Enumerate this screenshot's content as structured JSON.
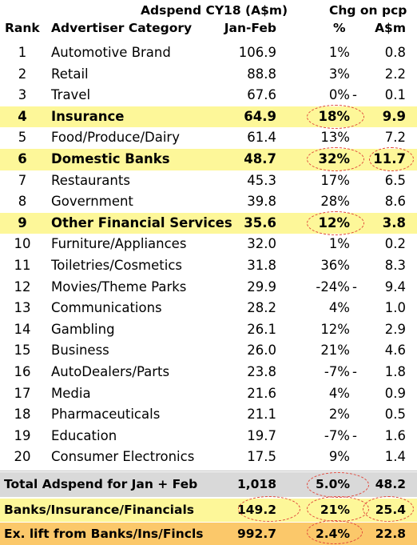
{
  "chart_data": {
    "type": "table",
    "header": {
      "group_adspend": "Adspend CY18 (A$m)",
      "group_chg": "Chg on pcp",
      "rank": "Rank",
      "category": "Advertiser Category",
      "period": "Jan-Feb",
      "pct": "%",
      "amt": "A$m"
    },
    "rows": [
      {
        "rank": "1",
        "category": "Automotive Brand",
        "value": "106.9",
        "pct": "1%",
        "dash": "",
        "amt": "0.8",
        "highlight": false
      },
      {
        "rank": "2",
        "category": "Retail",
        "value": "88.8",
        "pct": "3%",
        "dash": "",
        "amt": "2.2",
        "highlight": false
      },
      {
        "rank": "3",
        "category": "Travel",
        "value": "67.6",
        "pct": "0%",
        "dash": "-",
        "amt": "0.1",
        "highlight": false
      },
      {
        "rank": "4",
        "category": "Insurance",
        "value": "64.9",
        "pct": "18%",
        "dash": "",
        "amt": "9.9",
        "highlight": true
      },
      {
        "rank": "5",
        "category": "Food/Produce/Dairy",
        "value": "61.4",
        "pct": "13%",
        "dash": "",
        "amt": "7.2",
        "highlight": false
      },
      {
        "rank": "6",
        "category": "Domestic Banks",
        "value": "48.7",
        "pct": "32%",
        "dash": "",
        "amt": "11.7",
        "highlight": true
      },
      {
        "rank": "7",
        "category": "Restaurants",
        "value": "45.3",
        "pct": "17%",
        "dash": "",
        "amt": "6.5",
        "highlight": false
      },
      {
        "rank": "8",
        "category": "Government",
        "value": "39.8",
        "pct": "28%",
        "dash": "",
        "amt": "8.6",
        "highlight": false
      },
      {
        "rank": "9",
        "category": "Other Financial Services",
        "value": "35.6",
        "pct": "12%",
        "dash": "",
        "amt": "3.8",
        "highlight": true
      },
      {
        "rank": "10",
        "category": "Furniture/Appliances",
        "value": "32.0",
        "pct": "1%",
        "dash": "",
        "amt": "0.2",
        "highlight": false
      },
      {
        "rank": "11",
        "category": "Toiletries/Cosmetics",
        "value": "31.8",
        "pct": "36%",
        "dash": "",
        "amt": "8.3",
        "highlight": false
      },
      {
        "rank": "12",
        "category": "Movies/Theme Parks",
        "value": "29.9",
        "pct": "-24%",
        "dash": "-",
        "amt": "9.4",
        "highlight": false
      },
      {
        "rank": "13",
        "category": "Communications",
        "value": "28.2",
        "pct": "4%",
        "dash": "",
        "amt": "1.0",
        "highlight": false
      },
      {
        "rank": "14",
        "category": "Gambling",
        "value": "26.1",
        "pct": "12%",
        "dash": "",
        "amt": "2.9",
        "highlight": false
      },
      {
        "rank": "15",
        "category": "Business",
        "value": "26.0",
        "pct": "21%",
        "dash": "",
        "amt": "4.6",
        "highlight": false
      },
      {
        "rank": "16",
        "category": "AutoDealers/Parts",
        "value": "23.8",
        "pct": "-7%",
        "dash": "-",
        "amt": "1.8",
        "highlight": false
      },
      {
        "rank": "17",
        "category": "Media",
        "value": "21.6",
        "pct": "4%",
        "dash": "",
        "amt": "0.9",
        "highlight": false
      },
      {
        "rank": "18",
        "category": "Pharmaceuticals",
        "value": "21.1",
        "pct": "2%",
        "dash": "",
        "amt": "0.5",
        "highlight": false
      },
      {
        "rank": "19",
        "category": "Education",
        "value": "19.7",
        "pct": "-7%",
        "dash": "-",
        "amt": "1.6",
        "highlight": false
      },
      {
        "rank": "20",
        "category": "Consumer Electronics",
        "value": "17.5",
        "pct": "9%",
        "dash": "",
        "amt": "1.4",
        "highlight": false
      }
    ],
    "summary": [
      {
        "label": "Total Adspend for Jan + Feb",
        "value": "1,018",
        "pct": "5.0%",
        "amt": "48.2",
        "fill": "grey"
      },
      {
        "label": "Banks/Insurance/Financials",
        "value": "149.2",
        "pct": "21%",
        "amt": "25.4",
        "fill": "yellow"
      },
      {
        "label": "Ex. lift from Banks/Ins/Fincls",
        "value": "992.7",
        "pct": "2.4%",
        "amt": "22.8",
        "fill": "orange"
      }
    ],
    "colors": {
      "highlight_row": "#fdf799",
      "total_row": "#d9d9d9",
      "ex_lift_row": "#fbc86a",
      "annotation_oval": "#e0483c"
    }
  }
}
